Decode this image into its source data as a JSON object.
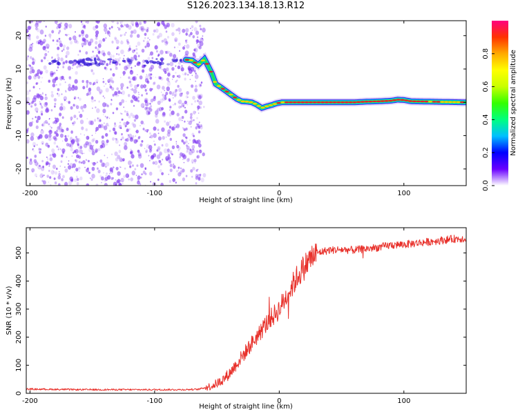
{
  "title": "S126.2023.134.18.13.R12",
  "colors": {
    "snr_line": "#e8302a",
    "ridge_core": "#e8202a",
    "ridge_edge": "#20e060",
    "ridge_outer": "#3020e0",
    "noise": "#7a2ff0",
    "frame": "#000000"
  },
  "chart_data": [
    {
      "type": "heatmap",
      "title": "",
      "xlabel": "Height of straight line (km)",
      "ylabel": "Frequency (Hz)",
      "xlim": [
        -203,
        150
      ],
      "ylim": [
        -25,
        24.5
      ],
      "x_ticks": [
        -200,
        -100,
        0,
        100
      ],
      "y_ticks": [
        -20,
        -10,
        0,
        10,
        20
      ],
      "grid": false,
      "noise_region_x": [
        -203,
        -60
      ],
      "ridge": {
        "x": [
          -75,
          -70,
          -65,
          -60,
          -57,
          -54,
          -51,
          -48,
          -45,
          -42,
          -38,
          -34,
          -30,
          -26,
          -22,
          -18,
          -14,
          -10,
          -6,
          -2,
          2,
          10,
          20,
          40,
          60,
          70,
          80,
          90,
          95,
          100,
          106,
          150
        ],
        "freq": [
          12.8,
          12.6,
          11.2,
          13.0,
          10.8,
          8.6,
          5.5,
          4.8,
          4.0,
          3.2,
          2.1,
          1.0,
          0.3,
          0.2,
          0.0,
          -0.7,
          -1.7,
          -1.2,
          -0.8,
          -0.3,
          0.0,
          0.0,
          0.0,
          0.0,
          0.0,
          0.2,
          0.3,
          0.5,
          0.8,
          0.7,
          0.3,
          0.0
        ]
      },
      "colorbar": {
        "label": "Normalized spectral amplitude",
        "range": [
          0,
          1
        ],
        "ticks": [
          0.0,
          0.2,
          0.4,
          0.6,
          0.8
        ],
        "colors": [
          "#ffffff",
          "#6a00ff",
          "#0000ff",
          "#00bfff",
          "#00ff80",
          "#33ff00",
          "#c8ff00",
          "#ffff00",
          "#ffaa00",
          "#ff3300",
          "#ff007f"
        ]
      }
    },
    {
      "type": "line",
      "title": "",
      "xlabel": "Height of straight line (km)",
      "ylabel": "SNR (10 * v/v)",
      "xlim": [
        -203,
        150
      ],
      "ylim": [
        0,
        590
      ],
      "x_ticks": [
        -200,
        -100,
        0,
        100
      ],
      "y_ticks": [
        0,
        100,
        200,
        300,
        400,
        500
      ],
      "grid": false,
      "series": [
        {
          "x": [
            -203,
            -180,
            -160,
            -140,
            -120,
            -100,
            -80,
            -65,
            -60,
            -55,
            -50,
            -45,
            -40,
            -35,
            -30,
            -25,
            -20,
            -15,
            -10,
            -5,
            0,
            5,
            10,
            15,
            20,
            25,
            30,
            40,
            50,
            60,
            70,
            80,
            90,
            100,
            110,
            120,
            130,
            140,
            150
          ],
          "y": [
            15,
            14,
            13,
            13,
            13,
            13,
            13,
            14,
            20,
            25,
            35,
            50,
            70,
            100,
            130,
            160,
            190,
            220,
            250,
            275,
            300,
            340,
            380,
            420,
            450,
            480,
            500,
            510,
            512,
            510,
            515,
            520,
            528,
            530,
            535,
            540,
            545,
            550,
            552
          ]
        }
      ]
    }
  ]
}
